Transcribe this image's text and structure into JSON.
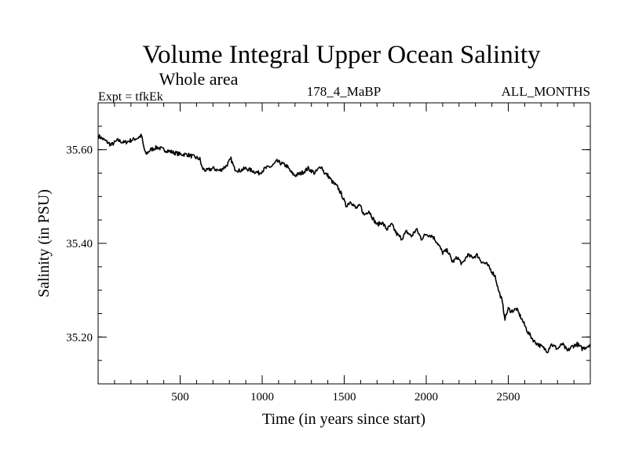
{
  "chart_data": {
    "type": "line",
    "title": "Volume Integral Upper Ocean Salinity",
    "subtitle": "Whole area",
    "annotations": {
      "left": "Expt = tfkEk",
      "center": "178_4_MaBP",
      "right": "ALL_MONTHS"
    },
    "xlabel": "Time (in years since start)",
    "ylabel": "Salinity (in PSU)",
    "xlim": [
      0,
      3000
    ],
    "ylim": [
      35.1,
      35.7
    ],
    "x_ticks": [
      500,
      1000,
      1500,
      2000,
      2500
    ],
    "x_ticks_labels": [
      "500",
      "1000",
      "1500",
      "2000",
      "2500"
    ],
    "y_ticks": [
      35.2,
      35.4,
      35.6
    ],
    "y_ticks_labels": [
      "35.20",
      "35.40",
      "35.60"
    ],
    "x_minor_step": 100,
    "y_minor_step": 0.05,
    "grid": false,
    "legend": "none",
    "series": [
      {
        "color": "#000000",
        "x": [
          0,
          40,
          80,
          120,
          160,
          200,
          240,
          265,
          275,
          290,
          320,
          360,
          400,
          450,
          500,
          540,
          580,
          620,
          635,
          660,
          700,
          740,
          780,
          810,
          830,
          860,
          900,
          940,
          980,
          1020,
          1060,
          1090,
          1120,
          1150,
          1180,
          1200,
          1240,
          1280,
          1320,
          1360,
          1380,
          1400,
          1430,
          1460,
          1490,
          1510,
          1540,
          1570,
          1600,
          1620,
          1650,
          1680,
          1700,
          1730,
          1760,
          1790,
          1820,
          1850,
          1880,
          1910,
          1940,
          1970,
          2000,
          2040,
          2070,
          2100,
          2130,
          2160,
          2190,
          2220,
          2250,
          2280,
          2310,
          2340,
          2370,
          2400,
          2420,
          2440,
          2460,
          2480,
          2500,
          2520,
          2550,
          2580,
          2600,
          2620,
          2640,
          2660,
          2680,
          2700,
          2720,
          2740,
          2760,
          2780,
          2800,
          2830,
          2860,
          2890,
          2920,
          2950,
          2980,
          3000
        ],
        "y": [
          35.63,
          35.62,
          35.61,
          35.62,
          35.615,
          35.62,
          35.625,
          35.63,
          35.61,
          35.59,
          35.6,
          35.605,
          35.6,
          35.595,
          35.59,
          35.59,
          35.585,
          35.58,
          35.56,
          35.555,
          35.56,
          35.555,
          35.565,
          35.58,
          35.56,
          35.555,
          35.56,
          35.555,
          35.55,
          35.56,
          35.565,
          35.575,
          35.57,
          35.565,
          35.55,
          35.545,
          35.55,
          35.56,
          35.55,
          35.565,
          35.55,
          35.545,
          35.53,
          35.52,
          35.5,
          35.48,
          35.49,
          35.475,
          35.48,
          35.46,
          35.47,
          35.45,
          35.44,
          35.445,
          35.43,
          35.44,
          35.42,
          35.41,
          35.425,
          35.415,
          35.43,
          35.41,
          35.42,
          35.415,
          35.4,
          35.38,
          35.385,
          35.36,
          35.37,
          35.355,
          35.375,
          35.37,
          35.375,
          35.36,
          35.355,
          35.34,
          35.33,
          35.3,
          35.28,
          35.24,
          35.26,
          35.255,
          35.26,
          35.24,
          35.225,
          35.21,
          35.2,
          35.19,
          35.185,
          35.18,
          35.175,
          35.17,
          35.185,
          35.18,
          35.175,
          35.185,
          35.17,
          35.18,
          35.185,
          35.175,
          35.18,
          35.185
        ]
      }
    ]
  }
}
